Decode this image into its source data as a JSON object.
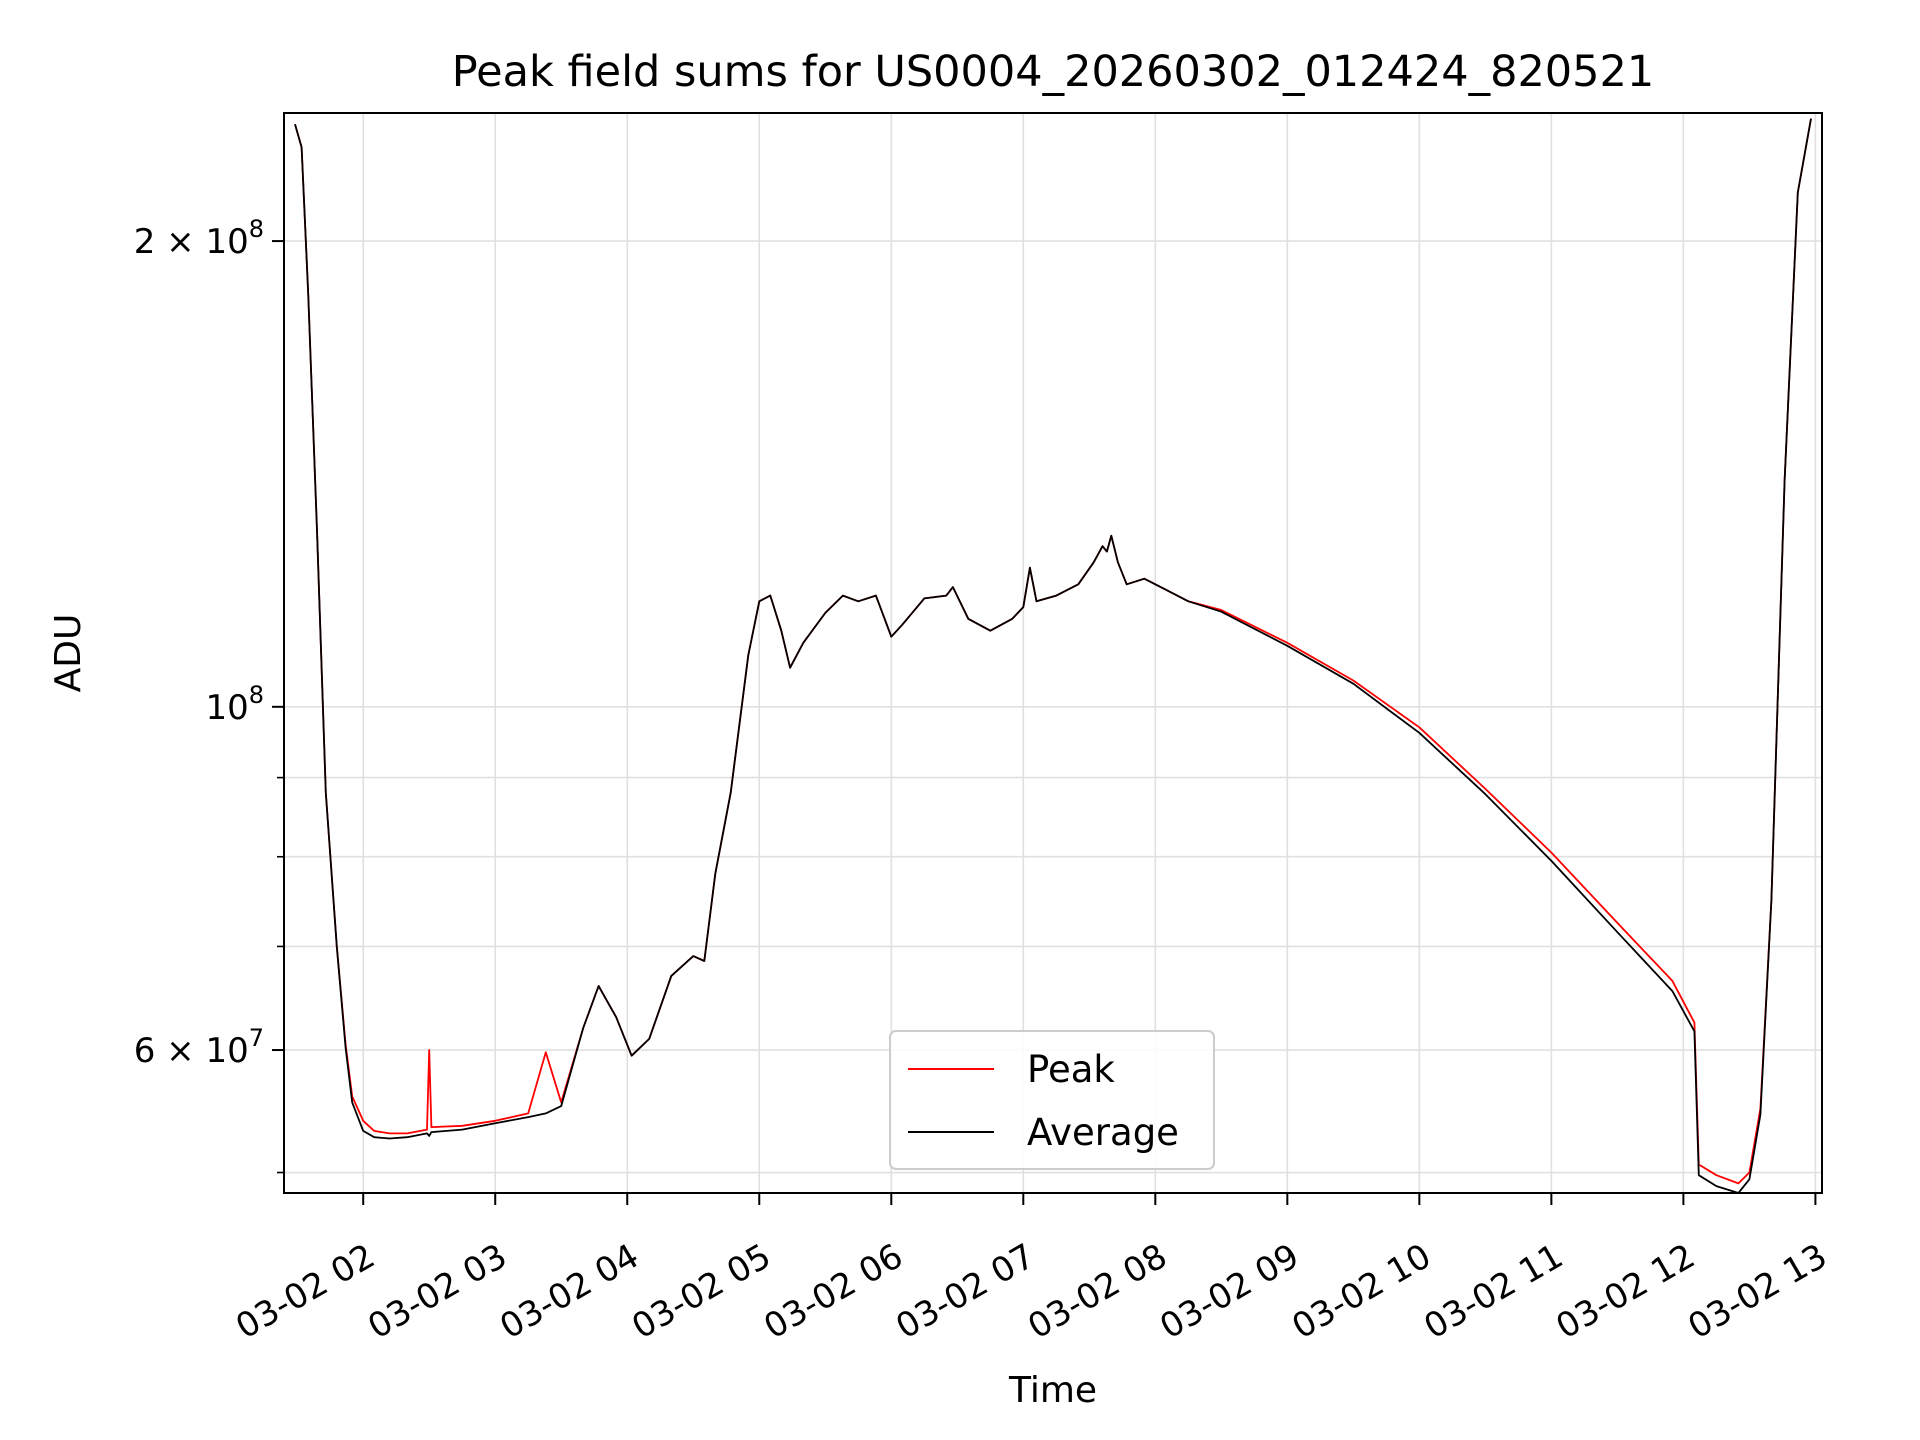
{
  "chart_data": {
    "type": "line",
    "title": "Peak field sums for US0004_20260302_012424_820521",
    "xlabel": "Time",
    "ylabel": "ADU",
    "y_scale": "log",
    "ylim": [
      48500000,
      242000000
    ],
    "xlim": [
      "2026-03-02 01:24",
      "2026-03-02 13:03"
    ],
    "grid": true,
    "legend_position": "lower center",
    "x_ticks": [
      {
        "value": "2026-03-02 02:00",
        "label": "03-02 02"
      },
      {
        "value": "2026-03-02 03:00",
        "label": "03-02 03"
      },
      {
        "value": "2026-03-02 04:00",
        "label": "03-02 04"
      },
      {
        "value": "2026-03-02 05:00",
        "label": "03-02 05"
      },
      {
        "value": "2026-03-02 06:00",
        "label": "03-02 06"
      },
      {
        "value": "2026-03-02 07:00",
        "label": "03-02 07"
      },
      {
        "value": "2026-03-02 08:00",
        "label": "03-02 08"
      },
      {
        "value": "2026-03-02 09:00",
        "label": "03-02 09"
      },
      {
        "value": "2026-03-02 10:00",
        "label": "03-02 10"
      },
      {
        "value": "2026-03-02 11:00",
        "label": "03-02 11"
      },
      {
        "value": "2026-03-02 12:00",
        "label": "03-02 12"
      },
      {
        "value": "2026-03-02 13:00",
        "label": "03-02 13"
      }
    ],
    "y_major_ticks": [
      {
        "value": 60000000,
        "base": "6 × 10",
        "exp": "7"
      },
      {
        "value": 100000000,
        "base": "10",
        "exp": "8"
      },
      {
        "value": 200000000,
        "base": "2 × 10",
        "exp": "8"
      }
    ],
    "y_minor_ticks": [
      50000000,
      70000000,
      80000000,
      90000000,
      300000000
    ],
    "x": [
      "2026-03-02 01:29",
      "2026-03-02 01:32",
      "2026-03-02 01:35",
      "2026-03-02 01:39",
      "2026-03-02 01:43",
      "2026-03-02 01:48",
      "2026-03-02 01:52",
      "2026-03-02 01:55",
      "2026-03-02 02:00",
      "2026-03-02 02:05",
      "2026-03-02 02:12",
      "2026-03-02 02:20",
      "2026-03-02 02:29",
      "2026-03-02 02:30",
      "2026-03-02 02:31",
      "2026-03-02 02:45",
      "2026-03-02 03:00",
      "2026-03-02 03:15",
      "2026-03-02 03:23",
      "2026-03-02 03:30",
      "2026-03-02 03:40",
      "2026-03-02 03:47",
      "2026-03-02 03:55",
      "2026-03-02 04:02",
      "2026-03-02 04:10",
      "2026-03-02 04:20",
      "2026-03-02 04:30",
      "2026-03-02 04:35",
      "2026-03-02 04:40",
      "2026-03-02 04:47",
      "2026-03-02 04:55",
      "2026-03-02 05:00",
      "2026-03-02 05:05",
      "2026-03-02 05:10",
      "2026-03-02 05:14",
      "2026-03-02 05:20",
      "2026-03-02 05:30",
      "2026-03-02 05:38",
      "2026-03-02 05:45",
      "2026-03-02 05:53",
      "2026-03-02 06:00",
      "2026-03-02 06:05",
      "2026-03-02 06:15",
      "2026-03-02 06:25",
      "2026-03-02 06:28",
      "2026-03-02 06:35",
      "2026-03-02 06:45",
      "2026-03-02 06:55",
      "2026-03-02 07:00",
      "2026-03-02 07:03",
      "2026-03-02 07:06",
      "2026-03-02 07:15",
      "2026-03-02 07:25",
      "2026-03-02 07:32",
      "2026-03-02 07:36",
      "2026-03-02 07:38",
      "2026-03-02 07:40",
      "2026-03-02 07:43",
      "2026-03-02 07:47",
      "2026-03-02 07:55",
      "2026-03-02 08:00",
      "2026-03-02 08:05",
      "2026-03-02 08:15",
      "2026-03-02 08:30",
      "2026-03-02 09:00",
      "2026-03-02 09:30",
      "2026-03-02 10:00",
      "2026-03-02 10:30",
      "2026-03-02 11:00",
      "2026-03-02 11:30",
      "2026-03-02 11:55",
      "2026-03-02 12:05",
      "2026-03-02 12:07",
      "2026-03-02 12:15",
      "2026-03-02 12:25",
      "2026-03-02 12:30",
      "2026-03-02 12:35",
      "2026-03-02 12:40",
      "2026-03-02 12:46",
      "2026-03-02 12:52",
      "2026-03-02 12:58"
    ],
    "series": [
      {
        "name": "Peak",
        "color": "#ff0000",
        "values": [
          238000000,
          230000000,
          185000000,
          130000000,
          88000000,
          70000000,
          60500000,
          56000000,
          54000000,
          53200000,
          53000000,
          53000000,
          53300000,
          60000000,
          53500000,
          53600000,
          54000000,
          54600000,
          59800000,
          55500000,
          62000000,
          66000000,
          63000000,
          59500000,
          61000000,
          67000000,
          69000000,
          68500000,
          78000000,
          88000000,
          108000000,
          117000000,
          118000000,
          112000000,
          106000000,
          110000000,
          115000000,
          118000000,
          117000000,
          118000000,
          111000000,
          113000000,
          117500000,
          118000000,
          119500000,
          114000000,
          112000000,
          114000000,
          116000000,
          123000000,
          117000000,
          118000000,
          120000000,
          124000000,
          127000000,
          126000000,
          129000000,
          124000000,
          120000000,
          121000000,
          120000000,
          119000000,
          117000000,
          115500000,
          110000000,
          104000000,
          97000000,
          88500000,
          80500000,
          72500000,
          66500000,
          62500000,
          50600000,
          49800000,
          49200000,
          50000000,
          55000000,
          75000000,
          140000000,
          215000000,
          240000000
        ]
      },
      {
        "name": "Average",
        "color": "#000000",
        "values": [
          238000000,
          230000000,
          185000000,
          130000000,
          88000000,
          70000000,
          60200000,
          55500000,
          53200000,
          52700000,
          52600000,
          52700000,
          53000000,
          52800000,
          53100000,
          53300000,
          53800000,
          54300000,
          54600000,
          55200000,
          62000000,
          66000000,
          63000000,
          59500000,
          61000000,
          67000000,
          69000000,
          68500000,
          78000000,
          88000000,
          108000000,
          117000000,
          118000000,
          112000000,
          106000000,
          110000000,
          115000000,
          118000000,
          117000000,
          118000000,
          111000000,
          113000000,
          117500000,
          118000000,
          119500000,
          114000000,
          112000000,
          114000000,
          116000000,
          123000000,
          117000000,
          118000000,
          120000000,
          124000000,
          127000000,
          126000000,
          129000000,
          124000000,
          120000000,
          121000000,
          120000000,
          119000000,
          117000000,
          115200000,
          109500000,
          103500000,
          96200000,
          87800000,
          79500000,
          71500000,
          65500000,
          61700000,
          49800000,
          49000000,
          48500000,
          49500000,
          54500000,
          75000000,
          140000000,
          215000000,
          240000000
        ]
      }
    ]
  }
}
